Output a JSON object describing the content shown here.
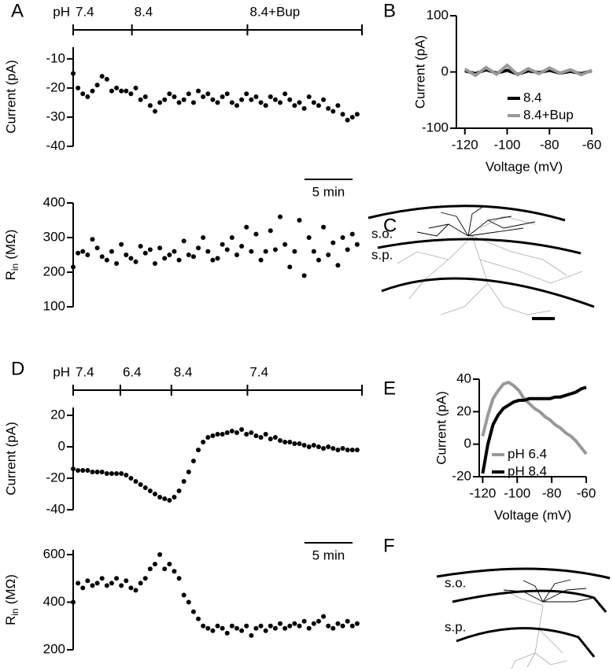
{
  "chart_data": [
    {
      "type": "scatter",
      "panel": "A",
      "ylabel": "Current (pA)",
      "xlim": [
        0,
        30
      ],
      "ylim": [
        -40,
        -6
      ],
      "yticks": [
        -10,
        -20,
        -30,
        -40
      ],
      "color": "#000000",
      "phases": {
        "label": "pH",
        "segments": [
          {
            "label": "7.4",
            "start": 0,
            "end": 6.1
          },
          {
            "label": "8.4",
            "start": 6.1,
            "end": 18.1
          },
          {
            "label": "8.4+Bup",
            "start": 18.1,
            "end": 30
          }
        ]
      },
      "scalebar": {
        "value": 5,
        "label": "5 min"
      },
      "x": [
        0,
        0.5,
        1,
        1.5,
        2,
        2.5,
        3,
        3.5,
        4,
        4.5,
        5,
        5.5,
        6,
        6.5,
        7,
        7.5,
        8,
        8.5,
        9,
        9.5,
        10,
        10.5,
        11,
        11.5,
        12,
        12.5,
        13,
        13.5,
        14,
        14.5,
        15,
        15.5,
        16,
        16.5,
        17,
        17.5,
        18,
        18.5,
        19,
        19.5,
        20,
        20.5,
        21,
        21.5,
        22,
        22.5,
        23,
        23.5,
        24,
        24.5,
        25,
        25.5,
        26,
        26.5,
        27,
        27.5,
        28,
        28.5,
        29,
        29.5
      ],
      "values": [
        -15,
        -20,
        -22,
        -23,
        -21,
        -19,
        -16,
        -17,
        -21,
        -20,
        -21,
        -21,
        -22,
        -20,
        -24,
        -23,
        -26,
        -28,
        -25,
        -24,
        -22,
        -23,
        -25,
        -24,
        -22,
        -25,
        -21,
        -23,
        -22,
        -24,
        -25,
        -23,
        -22,
        -25,
        -26,
        -24,
        -22,
        -24,
        -23,
        -25,
        -26,
        -23,
        -24,
        -25,
        -22,
        -24,
        -26,
        -25,
        -27,
        -23,
        -25,
        -26,
        -24,
        -27,
        -28,
        -26,
        -29,
        -31,
        -30,
        -29
      ]
    },
    {
      "type": "scatter",
      "ylabel": {
        "text": "R",
        "sub": "in",
        "unit": "(MΩ)"
      },
      "xlim": [
        0,
        30
      ],
      "ylim": [
        100,
        400
      ],
      "yticks": [
        400,
        300,
        200,
        100
      ],
      "color": "#000000",
      "x": [
        0,
        0.5,
        1,
        1.5,
        2,
        2.5,
        3,
        3.5,
        4,
        4.5,
        5,
        5.5,
        6,
        6.5,
        7,
        7.5,
        8,
        8.5,
        9,
        9.5,
        10,
        10.5,
        11,
        11.5,
        12,
        12.5,
        13,
        13.5,
        14,
        14.5,
        15,
        15.5,
        16,
        16.5,
        17,
        17.5,
        18,
        18.5,
        19,
        19.5,
        20,
        20.5,
        21,
        21.5,
        22,
        22.5,
        23,
        23.5,
        24,
        24.5,
        25,
        25.5,
        26,
        26.5,
        27,
        27.5,
        28,
        28.5,
        29,
        29.5
      ],
      "values": [
        215,
        255,
        260,
        250,
        295,
        270,
        245,
        235,
        260,
        225,
        280,
        250,
        240,
        230,
        275,
        255,
        265,
        225,
        270,
        240,
        250,
        260,
        235,
        290,
        250,
        245,
        270,
        300,
        260,
        235,
        240,
        280,
        265,
        300,
        250,
        275,
        330,
        260,
        310,
        235,
        260,
        320,
        265,
        360,
        280,
        215,
        260,
        350,
        190,
        300,
        260,
        235,
        330,
        250,
        285,
        220,
        300,
        265,
        310,
        280
      ]
    },
    {
      "type": "line",
      "panel": "B",
      "ylabel": "Current (pA)",
      "xlabel": "Voltage (mV)",
      "xlim": [
        -124,
        -60
      ],
      "xticks": [
        -120,
        -100,
        -80,
        -60
      ],
      "ylim": [
        -100,
        100
      ],
      "yticks": [
        100,
        0,
        -100
      ],
      "legend": "lower right",
      "x": [
        -120,
        -115,
        -110,
        -105,
        -100,
        -95,
        -90,
        -85,
        -80,
        -75,
        -70,
        -65,
        -60
      ],
      "series": [
        {
          "name": "8.4",
          "color": "#000000",
          "values": [
            2,
            -3,
            4,
            -2,
            3,
            -4,
            2,
            -1,
            3,
            -2,
            1,
            -3,
            2
          ]
        },
        {
          "name": "8.4+Bup",
          "color": "#999999",
          "values": [
            5,
            -6,
            8,
            -4,
            12,
            -5,
            6,
            -3,
            7,
            -2,
            4,
            -5,
            3
          ]
        }
      ]
    },
    {
      "type": "scatter",
      "panel": "D",
      "ylabel": "Current (pA)",
      "xlim": [
        0,
        30
      ],
      "ylim": [
        -40,
        25
      ],
      "yticks": [
        20,
        0,
        -20,
        -40
      ],
      "color": "#000000",
      "phases": {
        "label": "pH",
        "segments": [
          {
            "label": "7.4",
            "start": 0,
            "end": 4.9
          },
          {
            "label": "6.4",
            "start": 4.9,
            "end": 10.2
          },
          {
            "label": "8.4",
            "start": 10.2,
            "end": 18.1
          },
          {
            "label": "7.4",
            "start": 18.1,
            "end": 30
          }
        ]
      },
      "scalebar": {
        "value": 5,
        "label": "5 min"
      },
      "x": [
        0,
        0.5,
        1,
        1.5,
        2,
        2.5,
        3,
        3.5,
        4,
        4.5,
        5,
        5.5,
        6,
        6.5,
        7,
        7.5,
        8,
        8.5,
        9,
        9.5,
        10,
        10.5,
        11,
        11.5,
        12,
        12.5,
        13,
        13.5,
        14,
        14.5,
        15,
        15.5,
        16,
        16.5,
        17,
        17.5,
        18,
        18.5,
        19,
        19.5,
        20,
        20.5,
        21,
        21.5,
        22,
        22.5,
        23,
        23.5,
        24,
        24.5,
        25,
        25.5,
        26,
        26.5,
        27,
        27.5,
        28,
        28.5,
        29,
        29.5
      ],
      "values": [
        -14,
        -15,
        -15,
        -15,
        -16,
        -16,
        -16,
        -17,
        -17,
        -17,
        -17,
        -18,
        -20,
        -22,
        -24,
        -26,
        -28,
        -30,
        -32,
        -33,
        -34,
        -32,
        -28,
        -22,
        -16,
        -9,
        -2,
        3,
        6,
        7,
        8,
        8,
        9,
        10,
        9,
        11,
        8,
        9,
        7,
        6,
        8,
        5,
        6,
        4,
        3,
        3,
        2,
        2,
        1,
        0,
        1,
        0,
        -1,
        0,
        -1,
        -2,
        -1,
        -2,
        -2,
        -2
      ]
    },
    {
      "type": "scatter",
      "ylabel": {
        "text": "R",
        "sub": "in",
        "unit": "(MΩ)"
      },
      "xlim": [
        0,
        30
      ],
      "ylim": [
        200,
        620
      ],
      "yticks": [
        600,
        400,
        200
      ],
      "color": "#000000",
      "x": [
        0,
        0.5,
        1,
        1.5,
        2,
        2.5,
        3,
        3.5,
        4,
        4.5,
        5,
        5.5,
        6,
        6.5,
        7,
        7.5,
        8,
        8.5,
        9,
        9.5,
        10,
        10.5,
        11,
        11.5,
        12,
        12.5,
        13,
        13.5,
        14,
        14.5,
        15,
        15.5,
        16,
        16.5,
        17,
        17.5,
        18,
        18.5,
        19,
        19.5,
        20,
        20.5,
        21,
        21.5,
        22,
        22.5,
        23,
        23.5,
        24,
        24.5,
        25,
        25.5,
        26,
        26.5,
        27,
        27.5,
        28,
        28.5,
        29,
        29.5
      ],
      "values": [
        400,
        480,
        460,
        490,
        470,
        480,
        500,
        470,
        480,
        500,
        470,
        490,
        460,
        450,
        480,
        500,
        540,
        560,
        600,
        540,
        560,
        530,
        500,
        430,
        400,
        360,
        330,
        300,
        290,
        280,
        300,
        290,
        270,
        300,
        290,
        280,
        300,
        260,
        290,
        300,
        280,
        300,
        290,
        310,
        290,
        300,
        310,
        300,
        320,
        290,
        310,
        320,
        340,
        300,
        290,
        310,
        300,
        320,
        300,
        310
      ]
    },
    {
      "type": "line",
      "panel": "E",
      "ylabel": "Current (pA)",
      "xlabel": "Voltage (mV)",
      "xlim": [
        -122,
        -60
      ],
      "xticks": [
        -120,
        -100,
        -80,
        -60
      ],
      "ylim": [
        -20,
        40
      ],
      "yticks": [
        40,
        20,
        0,
        -20
      ],
      "legend": "lower left",
      "x": [
        -120,
        -117,
        -114,
        -111,
        -108,
        -105,
        -102,
        -99,
        -96,
        -93,
        -90,
        -87,
        -84,
        -81,
        -78,
        -75,
        -72,
        -69,
        -66,
        -63,
        -60
      ],
      "series": [
        {
          "name": "pH 6.4",
          "color": "#999999",
          "values": [
            5,
            18,
            28,
            33,
            37,
            38,
            36,
            33,
            28,
            25,
            22,
            20,
            17,
            15,
            12,
            10,
            7,
            5,
            2,
            -2,
            -6
          ]
        },
        {
          "name": "pH 8.4",
          "color": "#000000",
          "values": [
            -18,
            0,
            12,
            18,
            22,
            24,
            26,
            27,
            27,
            28,
            28,
            28,
            28,
            28,
            29,
            29,
            30,
            31,
            32,
            34,
            35
          ]
        }
      ]
    }
  ],
  "figures": [
    {
      "panel": "C",
      "labels": [
        "s.o.",
        "s.p."
      ]
    },
    {
      "panel": "F",
      "labels": [
        "s.o.",
        "s.p."
      ]
    }
  ]
}
